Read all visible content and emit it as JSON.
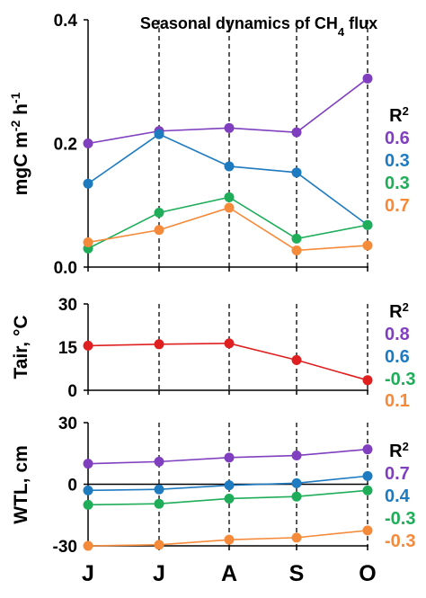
{
  "chart_data": [
    {
      "type": "line",
      "title": "Seasonal dynamics of CH",
      "title_sub": "4",
      "title_tail": " flux",
      "ylabel": "mgC m",
      "ylabel_sup1": "-2",
      "ylabel_mid": " h",
      "ylabel_sup2": "-1",
      "ylim": [
        0,
        0.4
      ],
      "yticks": [
        "0.0",
        "0.2",
        "0.4"
      ],
      "ytick_values": [
        0,
        0.2,
        0.4
      ],
      "categories": [
        "J",
        "J",
        "A",
        "S",
        "O"
      ],
      "series": [
        {
          "color": "#7f3fbf",
          "values": [
            0.2,
            0.22,
            0.225,
            0.218,
            0.305
          ]
        },
        {
          "color": "#1f7bc0",
          "values": [
            0.135,
            0.215,
            0.163,
            0.153,
            0.068
          ]
        },
        {
          "color": "#1fad5a",
          "values": [
            0.03,
            0.088,
            0.113,
            0.046,
            0.068
          ]
        },
        {
          "color": "#f58a3a",
          "values": [
            0.04,
            0.06,
            0.096,
            0.027,
            0.035
          ]
        }
      ],
      "r2_label": "R",
      "r2_sup": "2",
      "r2_values": [
        {
          "text": "0.6",
          "color": "#7f3fbf"
        },
        {
          "text": "0.3",
          "color": "#1f7bc0"
        },
        {
          "text": "0.3",
          "color": "#1fad5a"
        },
        {
          "text": "0.7",
          "color": "#f58a3a"
        }
      ]
    },
    {
      "type": "line",
      "ylabel": "Tair, °C",
      "ylim": [
        0,
        30
      ],
      "yticks": [
        "0",
        "15",
        "30"
      ],
      "ytick_values": [
        0,
        15,
        30
      ],
      "categories": [
        "J",
        "J",
        "A",
        "S",
        "O"
      ],
      "series": [
        {
          "color": "#e02020",
          "values": [
            15.5,
            16,
            16.3,
            10.5,
            3.5
          ]
        }
      ],
      "r2_label": "R",
      "r2_sup": "2",
      "r2_values": [
        {
          "text": "0.8",
          "color": "#7f3fbf"
        },
        {
          "text": "0.6",
          "color": "#1f7bc0"
        },
        {
          "text": "-0.3",
          "color": "#1fad5a"
        },
        {
          "text": "0.1",
          "color": "#f58a3a"
        }
      ]
    },
    {
      "type": "line",
      "ylabel": "WTL, cm",
      "ylim": [
        -30,
        30
      ],
      "yticks": [
        "-30",
        "0",
        "30"
      ],
      "ytick_values": [
        -30,
        0,
        30
      ],
      "categories": [
        "J",
        "J",
        "A",
        "S",
        "O"
      ],
      "series": [
        {
          "color": "#7f3fbf",
          "values": [
            10,
            11,
            13,
            14,
            17
          ]
        },
        {
          "color": "#1f7bc0",
          "values": [
            -3,
            -2.5,
            -0.5,
            0.5,
            4
          ]
        },
        {
          "color": "#1fad5a",
          "values": [
            -10,
            -9.5,
            -7,
            -6,
            -3
          ]
        },
        {
          "color": "#f58a3a",
          "values": [
            -30,
            -29.5,
            -27,
            -26,
            -22.5
          ]
        }
      ],
      "r2_label": "R",
      "r2_sup": "2",
      "r2_values": [
        {
          "text": "0.7",
          "color": "#7f3fbf"
        },
        {
          "text": "0.4",
          "color": "#1f7bc0"
        },
        {
          "text": "-0.3",
          "color": "#1fad5a"
        },
        {
          "text": "-0.3",
          "color": "#f58a3a"
        }
      ]
    }
  ]
}
